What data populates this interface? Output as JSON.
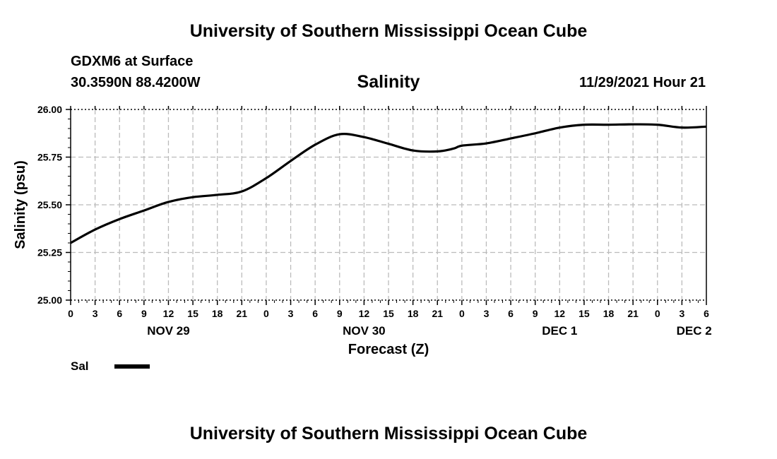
{
  "page": {
    "title_top": "University of Southern Mississippi Ocean Cube",
    "title_bottom": "University of Southern Mississippi Ocean Cube",
    "station": "GDXM6 at Surface",
    "coords": "30.3590N  88.4200W",
    "timestamp": "11/29/2021 Hour 21"
  },
  "legend": {
    "label": "Sal"
  },
  "colors": {
    "line": "#000000",
    "grid": "#bbbbbb"
  },
  "chart_data": {
    "type": "line",
    "title": "Salinity",
    "xlabel": "Forecast (Z)",
    "ylabel": "Salinity (psu)",
    "xlim": [
      0,
      78
    ],
    "ylim": [
      25.0,
      26.0
    ],
    "yticks": [
      "25.00",
      "25.25",
      "25.50",
      "25.75",
      "26.00"
    ],
    "yticks_values": [
      25.0,
      25.25,
      25.5,
      25.75,
      26.0
    ],
    "xtick_labels": [
      "0",
      "3",
      "6",
      "9",
      "12",
      "15",
      "18",
      "21",
      "0",
      "3",
      "6",
      "9",
      "12",
      "15",
      "18",
      "21",
      "0",
      "3",
      "6",
      "9",
      "12",
      "15",
      "18",
      "21",
      "0",
      "3",
      "6"
    ],
    "day_labels": [
      {
        "text": "NOV 29",
        "hour": 12
      },
      {
        "text": "NOV 30",
        "hour": 36
      },
      {
        "text": "DEC 1",
        "hour": 60
      },
      {
        "text": "DEC 2",
        "hour": 76.5
      }
    ],
    "grid": true,
    "series": [
      {
        "name": "Sal",
        "x": [
          0,
          3,
          6,
          9,
          12,
          15,
          18,
          21,
          24,
          27,
          30,
          33,
          36,
          39,
          42,
          45,
          47,
          48,
          51,
          54,
          57,
          60,
          63,
          66,
          69,
          72,
          75,
          78
        ],
        "y": [
          25.3,
          25.37,
          25.425,
          25.47,
          25.515,
          25.54,
          25.552,
          25.57,
          25.64,
          25.73,
          25.815,
          25.87,
          25.855,
          25.82,
          25.785,
          25.78,
          25.795,
          25.81,
          25.822,
          25.848,
          25.875,
          25.905,
          25.92,
          25.92,
          25.922,
          25.92,
          25.905,
          25.91
        ]
      }
    ]
  }
}
